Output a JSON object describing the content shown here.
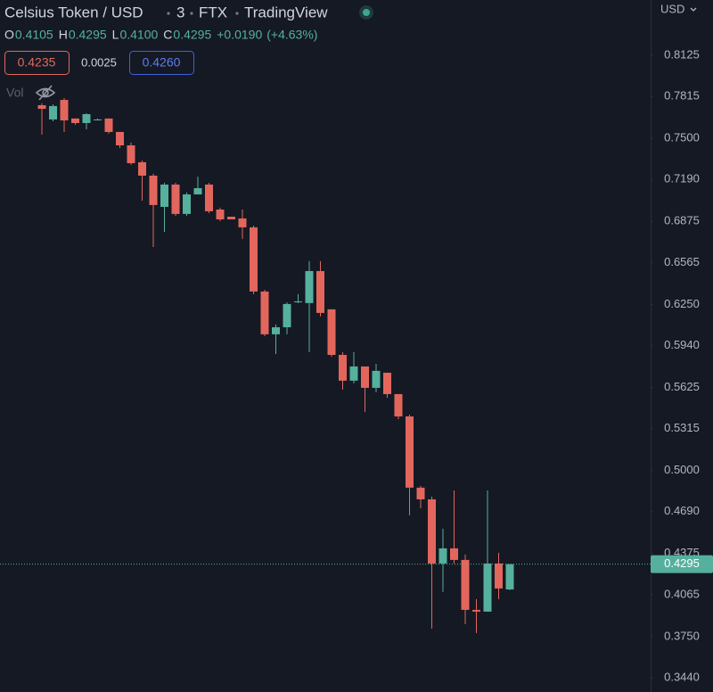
{
  "chart_data": {
    "type": "candlestick",
    "symbol": "Celsius Token / USD",
    "interval": "3",
    "exchange": "FTX",
    "source": "TradingView",
    "ohlc_legend": [
      {
        "key": "O",
        "value": "0.4105"
      },
      {
        "key": "H",
        "value": "0.4295"
      },
      {
        "key": "L",
        "value": "0.4100"
      },
      {
        "key": "C",
        "value": "0.4295"
      }
    ],
    "change": "+0.0190",
    "change_pct": "(+4.63%)",
    "quote": {
      "bid": "0.4235",
      "spread": "0.0025",
      "ask": "0.4260"
    },
    "volume_label": "Vol",
    "currency": "USD",
    "up_color": "#55b09e",
    "down_color": "#e3665d",
    "open": [
      0.7749,
      0.7642,
      0.7789,
      0.7649,
      0.7615,
      0.7642,
      0.7649,
      0.7548,
      0.7447,
      0.732,
      0.7219,
      0.6984,
      0.7152,
      0.6931,
      0.7078,
      0.7152,
      0.6964,
      0.691,
      0.6897,
      0.683,
      0.6347,
      0.6025,
      0.6078,
      0.6266,
      0.626,
      0.6501,
      0.6213,
      0.587,
      0.5676,
      0.5783,
      0.5622,
      0.5736,
      0.5575,
      0.5407,
      0.4871,
      0.4783,
      0.43,
      0.4414,
      0.4327,
      0.3951,
      0.3938,
      0.43,
      0.4105
    ],
    "high": [
      0.7763,
      0.7756,
      0.7803,
      0.7649,
      0.7689,
      0.7649,
      0.7649,
      0.7548,
      0.7467,
      0.7333,
      0.7233,
      0.7165,
      0.7165,
      0.7092,
      0.7212,
      0.7165,
      0.6978,
      0.691,
      0.6964,
      0.6843,
      0.636,
      0.6099,
      0.6266,
      0.6327,
      0.6575,
      0.6575,
      0.6213,
      0.5891,
      0.5891,
      0.5783,
      0.5803,
      0.5736,
      0.5575,
      0.5421,
      0.4884,
      0.4804,
      0.4562,
      0.485,
      0.4367,
      0.4032,
      0.485,
      0.4381,
      0.4295
    ],
    "low": [
      0.7528,
      0.7628,
      0.7548,
      0.7602,
      0.7568,
      0.7635,
      0.7535,
      0.7427,
      0.73,
      0.7031,
      0.6682,
      0.6796,
      0.6917,
      0.6917,
      0.7078,
      0.6937,
      0.6877,
      0.689,
      0.6743,
      0.6327,
      0.6011,
      0.5877,
      0.6025,
      0.626,
      0.5891,
      0.6159,
      0.5857,
      0.5609,
      0.5656,
      0.5441,
      0.5589,
      0.5548,
      0.5387,
      0.4663,
      0.4716,
      0.381,
      0.4086,
      0.43,
      0.3844,
      0.3777,
      0.3938,
      0.4032,
      0.41
    ],
    "close": [
      0.7722,
      0.7743,
      0.7635,
      0.7615,
      0.7682,
      0.7642,
      0.7548,
      0.7447,
      0.7313,
      0.7219,
      0.6998,
      0.7152,
      0.6931,
      0.7078,
      0.7125,
      0.6951,
      0.689,
      0.689,
      0.683,
      0.6347,
      0.6025,
      0.6078,
      0.6253,
      0.6273,
      0.6501,
      0.6186,
      0.587,
      0.5676,
      0.5783,
      0.5622,
      0.575,
      0.5575,
      0.5407,
      0.4871,
      0.4783,
      0.43,
      0.4414,
      0.4327,
      0.3951,
      0.3938,
      0.43,
      0.4112,
      0.4295
    ],
    "last_price": {
      "value": 0.4295,
      "label": "0.4295"
    },
    "ylim": [
      0.3333,
      0.8541
    ],
    "yticks": [
      0.8125,
      0.7815,
      {
        "value": 0.75,
        "label": "0.7500"
      },
      {
        "value": 0.719,
        "label": "0.7190"
      },
      0.6875,
      0.6565,
      {
        "value": 0.625,
        "label": "0.6250"
      },
      {
        "value": 0.594,
        "label": "0.5940"
      },
      0.5625,
      0.5315,
      {
        "value": 0.5,
        "label": "0.5000"
      },
      {
        "value": 0.469,
        "label": "0.4690"
      },
      0.4375,
      0.4065,
      {
        "value": 0.375,
        "label": "0.3750"
      },
      {
        "value": 0.344,
        "label": "0.3440"
      }
    ]
  }
}
